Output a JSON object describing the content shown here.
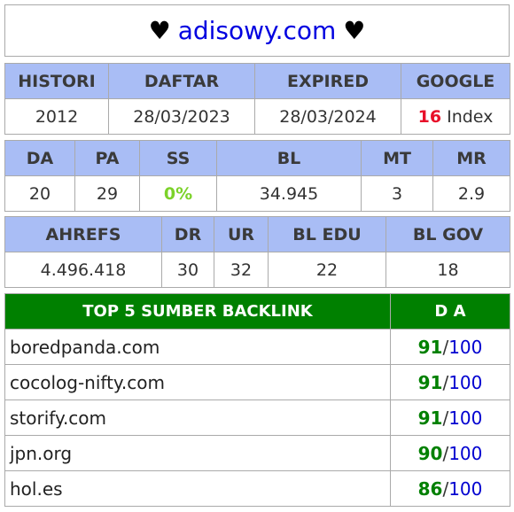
{
  "title": {
    "heart_left": "♥",
    "domain": "adisowy.com",
    "heart_right": "♥"
  },
  "row1": {
    "headers": [
      "HISTORI",
      "DAFTAR",
      "EXPIRED",
      "GOOGLE"
    ],
    "histori": "2012",
    "daftar": "28/03/2023",
    "expired": "28/03/2024",
    "google_count": "16",
    "google_suffix": "Index"
  },
  "row2": {
    "headers": [
      "DA",
      "PA",
      "SS",
      "BL",
      "MT",
      "MR"
    ],
    "values": [
      "20",
      "29",
      "0%",
      "34.945",
      "3",
      "2.9"
    ]
  },
  "row3": {
    "headers": [
      "AHREFS",
      "DR",
      "UR",
      "BL EDU",
      "BL GOV"
    ],
    "values": [
      "4.496.418",
      "30",
      "32",
      "22",
      "18"
    ]
  },
  "backlinks": {
    "header_source": "TOP 5 SUMBER BACKLINK",
    "header_da": "D A",
    "slash": "/",
    "items": [
      {
        "site": "boredpanda.com",
        "score": "91",
        "max": "100"
      },
      {
        "site": "cocolog-nifty.com",
        "score": "91",
        "max": "100"
      },
      {
        "site": "storify.com",
        "score": "91",
        "max": "100"
      },
      {
        "site": "jpn.org",
        "score": "90",
        "max": "100"
      },
      {
        "site": "hol.es",
        "score": "86",
        "max": "100"
      }
    ]
  },
  "colors": {
    "header_bg": "#a9bdf5",
    "backlink_header_bg": "#008000",
    "domain": "#0000e0",
    "google_count": "#e8102a",
    "ss_value": "#7cd22a",
    "score": "#008000",
    "score_max": "#0000d0"
  }
}
